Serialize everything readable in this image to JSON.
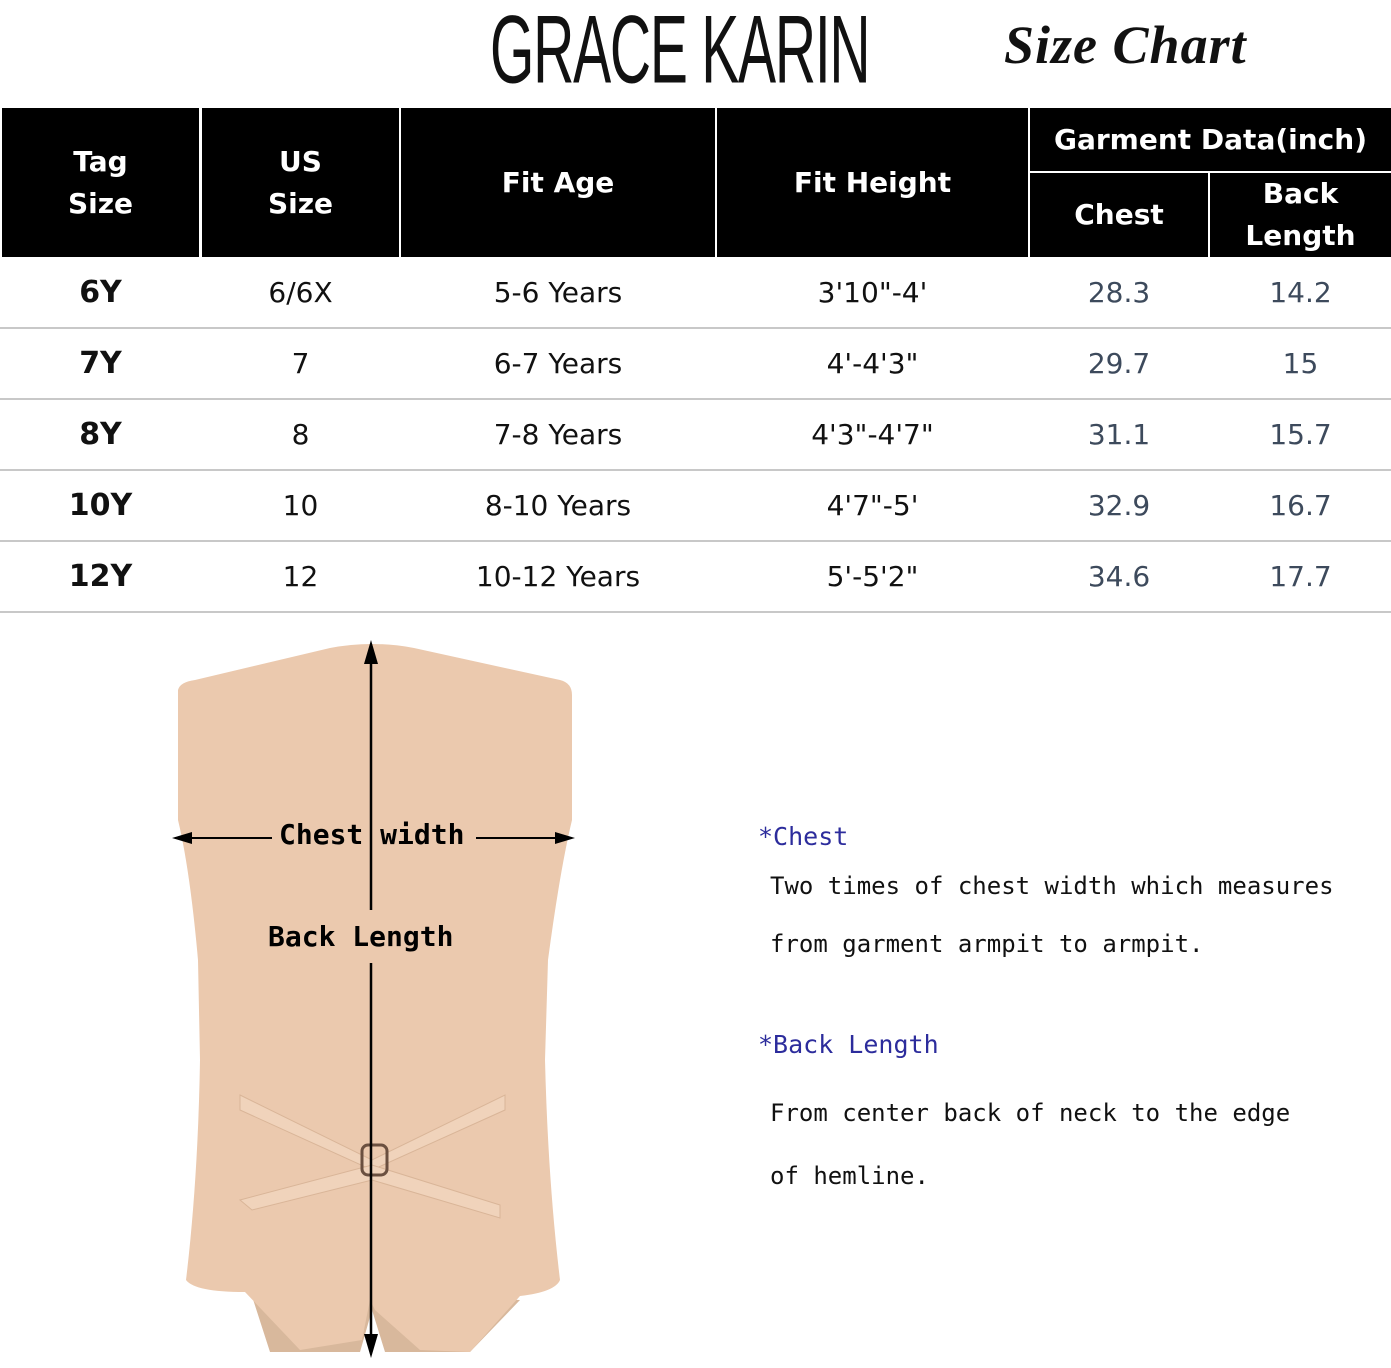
{
  "brand": "GRACE KARIN",
  "title": "Size Chart",
  "table": {
    "headers": {
      "tag_size": "Tag\nSize",
      "us_size": "US\nSize",
      "fit_age": "Fit Age",
      "fit_height": "Fit Height",
      "garment_group": "Garment Data(inch)",
      "chest": "Chest",
      "back_length": "Back\nLength"
    },
    "rows": [
      {
        "tag": "6Y",
        "us": "6/6X",
        "age": "5-6 Years",
        "height": "3'10\"-4'",
        "chest": "28.3",
        "back": "14.2"
      },
      {
        "tag": "7Y",
        "us": "7",
        "age": "6-7 Years",
        "height": "4'-4'3\"",
        "chest": "29.7",
        "back": "15"
      },
      {
        "tag": "8Y",
        "us": "8",
        "age": "7-8 Years",
        "height": "4'3\"-4'7\"",
        "chest": "31.1",
        "back": "15.7"
      },
      {
        "tag": "10Y",
        "us": "10",
        "age": "8-10 Years",
        "height": "4'7\"-5'",
        "chest": "32.9",
        "back": "16.7"
      },
      {
        "tag": "12Y",
        "us": "12",
        "age": "10-12 Years",
        "height": "5'-5'2\"",
        "chest": "34.6",
        "back": "17.7"
      }
    ]
  },
  "diagram": {
    "chest_label": "Chest width",
    "back_label": "Back Length",
    "vest_color": "#ebc9ae"
  },
  "notes": {
    "chest_title": "*Chest",
    "chest_line1": "Two times of chest width which measures",
    "chest_line2": "from garment armpit to armpit.",
    "back_title": "*Back Length",
    "back_line1": "From center back of neck to the edge",
    "back_line2": "of hemline."
  },
  "colors": {
    "header_bg": "#000000",
    "garment_values": "#3d4a5c",
    "note_title": "#2c2c9c"
  }
}
